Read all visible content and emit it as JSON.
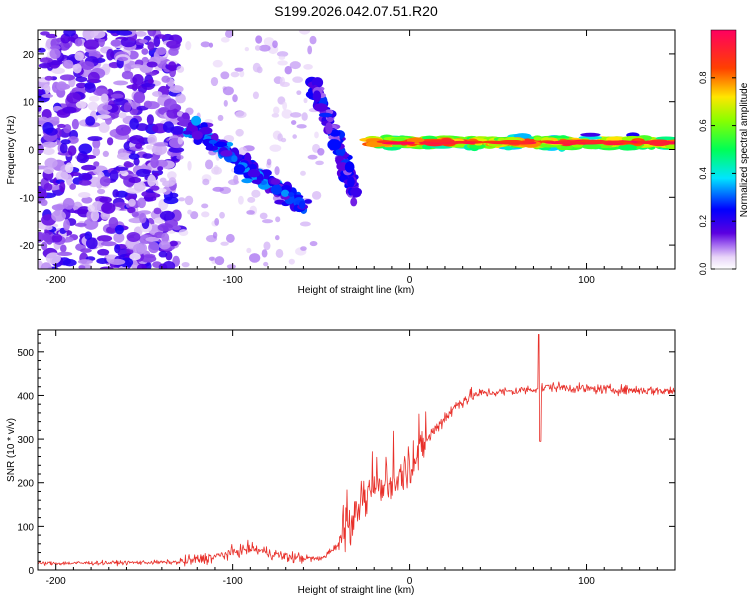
{
  "title": "S199.2026.042.07.51.R20",
  "colors": {
    "snr_line": "#e8302a",
    "axis": "#000000",
    "background": "#ffffff"
  },
  "chart_data": [
    {
      "type": "heatmap",
      "name": "spectrogram",
      "xlabel": "Height of straight line (km)",
      "ylabel": "Frequency (Hz)",
      "xlim": [
        -210,
        150
      ],
      "ylim": [
        -25,
        25
      ],
      "xticks": [
        -200,
        -100,
        0,
        100
      ],
      "yticks": [
        -20,
        -10,
        0,
        10,
        20
      ],
      "colorbar": {
        "label": "Normalized spectral amplitude",
        "range": [
          0,
          1
        ],
        "ticks": [
          "0.0",
          "0.2",
          "0.4",
          "0.6",
          "0.8"
        ]
      },
      "features": [
        {
          "name": "noise",
          "x_range": [
            -210,
            -130
          ],
          "freq_range": [
            -25,
            25
          ],
          "amplitude": 0.05
        },
        {
          "name": "descending trace",
          "x_start": -128,
          "f_start": 6,
          "x_end": -60,
          "f_end": -12,
          "amplitude": 0.25
        },
        {
          "name": "secondary trace",
          "x_start": -55,
          "f_start": 14,
          "x_end": -30,
          "f_end": -10,
          "amplitude": 0.2
        },
        {
          "name": "carrier",
          "x_start": -22,
          "x_end": 150,
          "freq": 1.5,
          "amplitude": 0.9
        }
      ]
    },
    {
      "type": "line",
      "name": "snr",
      "xlabel": "Height of straight line (km)",
      "ylabel": "SNR (10 * v/v)",
      "xlim": [
        -210,
        150
      ],
      "ylim": [
        0,
        550
      ],
      "xticks": [
        -200,
        -100,
        0,
        100
      ],
      "yticks": [
        0,
        100,
        200,
        300,
        400,
        500
      ],
      "trend": [
        {
          "x": -210,
          "y": 15
        },
        {
          "x": -130,
          "y": 18
        },
        {
          "x": -110,
          "y": 30
        },
        {
          "x": -90,
          "y": 50
        },
        {
          "x": -70,
          "y": 30
        },
        {
          "x": -50,
          "y": 25
        },
        {
          "x": -40,
          "y": 60
        },
        {
          "x": -30,
          "y": 130
        },
        {
          "x": -20,
          "y": 180
        },
        {
          "x": -10,
          "y": 200
        },
        {
          "x": 0,
          "y": 240
        },
        {
          "x": 10,
          "y": 300
        },
        {
          "x": 20,
          "y": 350
        },
        {
          "x": 30,
          "y": 390
        },
        {
          "x": 40,
          "y": 405
        },
        {
          "x": 60,
          "y": 410
        },
        {
          "x": 70,
          "y": 415
        },
        {
          "x": 80,
          "y": 420
        },
        {
          "x": 100,
          "y": 415
        },
        {
          "x": 150,
          "y": 410
        }
      ],
      "annotations": [
        {
          "x": 73,
          "y": 540,
          "note": "spike"
        },
        {
          "x": 73,
          "y": 295,
          "note": "dip"
        }
      ]
    }
  ]
}
